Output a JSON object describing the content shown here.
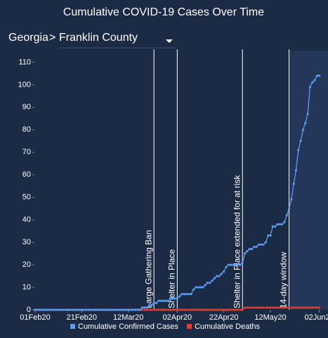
{
  "selector": {
    "state": "Georgia",
    "separator": ">",
    "county": "Franklin County"
  },
  "chart_data": {
    "type": "line",
    "title": "Cumulative COVID-19 Cases Over Time",
    "x": [
      "2020-02-01",
      "2020-02-02",
      "2020-02-03",
      "2020-02-04",
      "2020-02-05",
      "2020-02-06",
      "2020-02-07",
      "2020-02-08",
      "2020-02-09",
      "2020-02-10",
      "2020-02-11",
      "2020-02-12",
      "2020-02-13",
      "2020-02-14",
      "2020-02-15",
      "2020-02-16",
      "2020-02-17",
      "2020-02-18",
      "2020-02-19",
      "2020-02-20",
      "2020-02-21",
      "2020-02-22",
      "2020-02-23",
      "2020-02-24",
      "2020-02-25",
      "2020-02-26",
      "2020-02-27",
      "2020-02-28",
      "2020-02-29",
      "2020-03-01",
      "2020-03-02",
      "2020-03-03",
      "2020-03-04",
      "2020-03-05",
      "2020-03-06",
      "2020-03-07",
      "2020-03-08",
      "2020-03-09",
      "2020-03-10",
      "2020-03-11",
      "2020-03-12",
      "2020-03-13",
      "2020-03-14",
      "2020-03-15",
      "2020-03-16",
      "2020-03-17",
      "2020-03-18",
      "2020-03-19",
      "2020-03-20",
      "2020-03-21",
      "2020-03-22",
      "2020-03-23",
      "2020-03-24",
      "2020-03-25",
      "2020-03-26",
      "2020-03-27",
      "2020-03-28",
      "2020-03-29",
      "2020-03-30",
      "2020-03-31",
      "2020-04-01",
      "2020-04-02",
      "2020-04-03",
      "2020-04-04",
      "2020-04-05",
      "2020-04-06",
      "2020-04-07",
      "2020-04-08",
      "2020-04-09",
      "2020-04-10",
      "2020-04-11",
      "2020-04-12",
      "2020-04-13",
      "2020-04-14",
      "2020-04-15",
      "2020-04-16",
      "2020-04-17",
      "2020-04-18",
      "2020-04-19",
      "2020-04-20",
      "2020-04-21",
      "2020-04-22",
      "2020-04-23",
      "2020-04-24",
      "2020-04-25",
      "2020-04-26",
      "2020-04-27",
      "2020-04-28",
      "2020-04-29",
      "2020-04-30",
      "2020-05-01",
      "2020-05-02",
      "2020-05-03",
      "2020-05-04",
      "2020-05-05",
      "2020-05-06",
      "2020-05-07",
      "2020-05-08",
      "2020-05-09",
      "2020-05-10",
      "2020-05-11",
      "2020-05-12",
      "2020-05-13",
      "2020-05-14",
      "2020-05-15",
      "2020-05-16",
      "2020-05-17",
      "2020-05-18",
      "2020-05-19",
      "2020-05-20",
      "2020-05-21",
      "2020-05-22",
      "2020-05-23",
      "2020-05-24",
      "2020-05-25",
      "2020-05-26",
      "2020-05-27",
      "2020-05-28",
      "2020-05-29",
      "2020-05-30",
      "2020-05-31",
      "2020-06-01",
      "2020-06-02"
    ],
    "series": [
      {
        "name": "Cumulative Confirmed Cases",
        "color": "#5b9cf2",
        "values": [
          0,
          0,
          0,
          0,
          0,
          0,
          0,
          0,
          0,
          0,
          0,
          0,
          0,
          0,
          0,
          0,
          0,
          0,
          0,
          0,
          0,
          0,
          0,
          0,
          0,
          0,
          0,
          0,
          0,
          0,
          0,
          0,
          0,
          0,
          0,
          0,
          0,
          0,
          0,
          0,
          0,
          0,
          0,
          0,
          0,
          0,
          1,
          1,
          1,
          2,
          2,
          3,
          3,
          4,
          4,
          4,
          4,
          4,
          5,
          5,
          5,
          5,
          6,
          7,
          7,
          7,
          7,
          7,
          9,
          10,
          10,
          10,
          10,
          11,
          12,
          12,
          13,
          14,
          15,
          15,
          16,
          17,
          19,
          20,
          20,
          20,
          20,
          20,
          20,
          21,
          25,
          26,
          27,
          27,
          28,
          28,
          29,
          29,
          29,
          30,
          33,
          33,
          37,
          37,
          38,
          38,
          38,
          39,
          42,
          45,
          49,
          56,
          62,
          71,
          75,
          80,
          83,
          87,
          99,
          101,
          102,
          104,
          104
        ]
      },
      {
        "name": "Cumulative Deaths",
        "color": "#e0412f",
        "values": [
          0,
          0,
          0,
          0,
          0,
          0,
          0,
          0,
          0,
          0,
          0,
          0,
          0,
          0,
          0,
          0,
          0,
          0,
          0,
          0,
          0,
          0,
          0,
          0,
          0,
          0,
          0,
          0,
          0,
          0,
          0,
          0,
          0,
          0,
          0,
          0,
          0,
          0,
          0,
          0,
          0,
          0,
          0,
          0,
          0,
          0,
          0,
          0,
          0,
          0,
          0,
          0,
          0,
          0,
          0,
          0,
          0,
          0,
          0,
          0,
          0,
          0,
          0,
          0,
          0,
          0,
          0,
          0,
          0,
          0,
          0,
          0,
          0,
          0,
          0,
          0,
          0,
          0,
          0,
          0,
          0,
          0,
          0,
          0,
          0,
          0,
          0,
          0,
          0,
          0,
          1,
          1,
          1,
          1,
          1,
          1,
          1,
          1,
          1,
          1,
          1,
          1,
          1,
          1,
          1,
          1,
          1,
          1,
          1,
          1,
          1,
          1,
          1,
          1,
          1,
          1,
          1,
          1,
          1,
          1,
          1,
          1,
          1
        ]
      }
    ],
    "xlim": [
      "2020-02-01",
      "2020-06-03"
    ],
    "xticks": [
      {
        "value": "2020-02-01",
        "label": "01Feb20"
      },
      {
        "value": "2020-02-21",
        "label": "21Feb20"
      },
      {
        "value": "2020-03-12",
        "label": "12Mar20"
      },
      {
        "value": "2020-04-02",
        "label": "02Apr20"
      },
      {
        "value": "2020-04-22",
        "label": "22Apr20"
      },
      {
        "value": "2020-05-12",
        "label": "12May20"
      },
      {
        "value": "2020-06-02",
        "label": "02Jun20"
      }
    ],
    "ylim": [
      0,
      112
    ],
    "yticks": [
      0,
      10,
      20,
      30,
      40,
      50,
      60,
      70,
      80,
      90,
      100,
      110
    ],
    "events": [
      {
        "date": "2020-03-23",
        "label": "Large Gathering Ban"
      },
      {
        "date": "2020-04-02",
        "label": "Shelter in Place"
      },
      {
        "date": "2020-04-30",
        "label": "Shelter in Place extended for at risk"
      }
    ],
    "window": {
      "start": "2020-05-20",
      "label": "14-day window"
    },
    "legend": "bottom"
  }
}
